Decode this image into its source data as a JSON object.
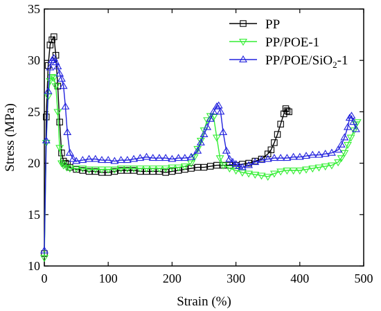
{
  "chart_data": {
    "type": "line",
    "xlabel": "Strain (%)",
    "ylabel": "Stress (MPa)",
    "xlim": [
      0,
      500
    ],
    "ylim": [
      10,
      35
    ],
    "xticks": [
      0,
      100,
      200,
      300,
      400,
      500
    ],
    "yticks": [
      10,
      15,
      20,
      25,
      30,
      35
    ],
    "xtick_labels": [
      "0",
      "100",
      "200",
      "300",
      "400",
      "500"
    ],
    "ytick_labels": [
      "10",
      "15",
      "20",
      "25",
      "30",
      "35"
    ],
    "grid": false,
    "legend_position": "top-right",
    "series": [
      {
        "name": "PP",
        "legend": {
          "text": "PP",
          "sub": "",
          "suffix": ""
        },
        "color": "#000000",
        "marker": "square",
        "x": [
          0,
          3,
          6,
          9,
          12,
          15,
          18,
          21,
          24,
          27,
          30,
          33,
          36,
          40,
          50,
          60,
          70,
          80,
          90,
          100,
          110,
          120,
          130,
          140,
          150,
          160,
          170,
          180,
          190,
          200,
          210,
          220,
          230,
          240,
          250,
          260,
          270,
          280,
          290,
          300,
          310,
          320,
          330,
          340,
          350,
          355,
          360,
          365,
          370,
          375,
          378,
          380,
          383
        ],
        "y": [
          11.2,
          24.5,
          29.5,
          31.5,
          32.0,
          32.3,
          30.5,
          27.5,
          24.0,
          21.0,
          20.2,
          20.0,
          19.9,
          19.6,
          19.4,
          19.3,
          19.2,
          19.2,
          19.1,
          19.1,
          19.2,
          19.3,
          19.3,
          19.3,
          19.2,
          19.2,
          19.2,
          19.2,
          19.1,
          19.2,
          19.3,
          19.4,
          19.5,
          19.6,
          19.6,
          19.7,
          19.8,
          19.8,
          19.8,
          19.8,
          19.9,
          20.0,
          20.2,
          20.4,
          20.9,
          21.3,
          22.0,
          22.8,
          23.8,
          24.8,
          25.3,
          25.1,
          25.0
        ]
      },
      {
        "name": "PP/POE-1",
        "legend": {
          "text": "PP/POE-1",
          "sub": "",
          "suffix": ""
        },
        "color": "#33ee33",
        "marker": "triangle-down",
        "x": [
          0,
          3,
          6,
          9,
          12,
          15,
          18,
          21,
          24,
          27,
          30,
          35,
          40,
          50,
          60,
          70,
          80,
          90,
          100,
          110,
          120,
          130,
          140,
          150,
          160,
          170,
          180,
          190,
          200,
          210,
          220,
          230,
          235,
          240,
          245,
          250,
          255,
          260,
          265,
          270,
          275,
          280,
          290,
          300,
          310,
          320,
          330,
          340,
          350,
          360,
          370,
          380,
          390,
          400,
          410,
          420,
          430,
          440,
          450,
          460,
          465,
          470,
          475,
          480,
          485,
          488,
          490
        ],
        "y": [
          10.8,
          22.0,
          26.5,
          28.0,
          28.4,
          28.3,
          27.5,
          25.0,
          21.5,
          20.0,
          19.8,
          19.6,
          19.5,
          19.5,
          19.5,
          19.4,
          19.4,
          19.4,
          19.4,
          19.4,
          19.5,
          19.5,
          19.5,
          19.5,
          19.5,
          19.5,
          19.5,
          19.5,
          19.6,
          19.6,
          19.7,
          20.0,
          20.6,
          21.4,
          22.2,
          23.2,
          24.2,
          24.6,
          24.5,
          22.5,
          20.5,
          19.8,
          19.5,
          19.3,
          19.1,
          19.0,
          18.9,
          18.8,
          18.7,
          19.0,
          19.2,
          19.3,
          19.3,
          19.3,
          19.4,
          19.5,
          19.6,
          19.7,
          19.8,
          20.1,
          20.5,
          21.0,
          21.8,
          22.5,
          23.2,
          23.8,
          24.0
        ]
      },
      {
        "name": "PP/POE/SiO2-1",
        "legend": {
          "text": "PP/POE/SiO",
          "sub": "2",
          "suffix": "-1"
        },
        "color": "#2222dd",
        "marker": "triangle-up",
        "x": [
          0,
          3,
          6,
          9,
          12,
          15,
          18,
          21,
          24,
          27,
          30,
          33,
          36,
          40,
          45,
          50,
          60,
          70,
          80,
          90,
          100,
          110,
          120,
          130,
          140,
          150,
          160,
          170,
          180,
          190,
          200,
          210,
          220,
          230,
          240,
          245,
          250,
          255,
          260,
          265,
          270,
          273,
          276,
          280,
          285,
          290,
          295,
          300,
          305,
          310,
          320,
          330,
          340,
          350,
          360,
          370,
          380,
          390,
          400,
          410,
          420,
          430,
          440,
          450,
          460,
          465,
          470,
          475,
          478,
          481,
          484,
          488
        ],
        "y": [
          11.5,
          22.2,
          27.0,
          29.3,
          30.0,
          30.2,
          29.8,
          29.4,
          28.7,
          28.2,
          27.5,
          25.5,
          23.0,
          21.0,
          20.4,
          20.2,
          20.3,
          20.4,
          20.4,
          20.3,
          20.3,
          20.2,
          20.3,
          20.3,
          20.4,
          20.5,
          20.6,
          20.5,
          20.5,
          20.5,
          20.4,
          20.5,
          20.5,
          20.6,
          21.2,
          22.0,
          22.8,
          23.5,
          24.3,
          25.0,
          25.5,
          25.6,
          25.0,
          23.0,
          21.2,
          20.4,
          20.1,
          19.9,
          19.7,
          19.6,
          19.8,
          20.1,
          20.3,
          20.4,
          20.5,
          20.5,
          20.5,
          20.6,
          20.6,
          20.7,
          20.8,
          20.8,
          20.9,
          21.0,
          21.3,
          21.8,
          22.5,
          23.5,
          24.4,
          24.6,
          24.0,
          23.3
        ]
      }
    ]
  }
}
